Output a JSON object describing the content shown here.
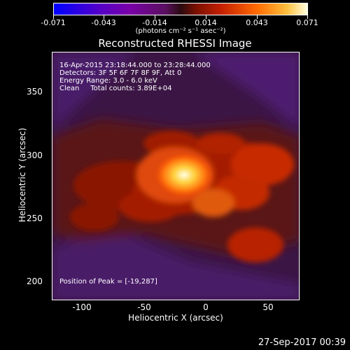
{
  "colorbar": {
    "tick_labels": [
      "-0.071",
      "-0.043",
      "-0.014",
      "0.014",
      "0.043",
      "0.071"
    ],
    "units": "(photons cm⁻² s⁻¹ asec⁻²)"
  },
  "title": "Reconstructed RHESSI Image",
  "annotations": {
    "time_range": "16-Apr-2015 23:18:44.000 to 23:28:44.000",
    "detectors": "Detectors: 3F 5F 6F 7F 8F 9F, Att 0",
    "energy": "Energy Range: 3.0 - 6.0 keV",
    "clean": "Clean     Total counts: 3.89E+04",
    "peak": "Position of Peak = [-19,287]"
  },
  "axes": {
    "xlabel": "Heliocentric X (arcsec)",
    "ylabel": "Heliocentric Y (arcsec)",
    "x_ticks": [
      "-100",
      "-50",
      "0",
      "50"
    ],
    "y_ticks": [
      "200",
      "250",
      "300",
      "350"
    ]
  },
  "timestamp": "27-Sep-2017 00:39"
}
